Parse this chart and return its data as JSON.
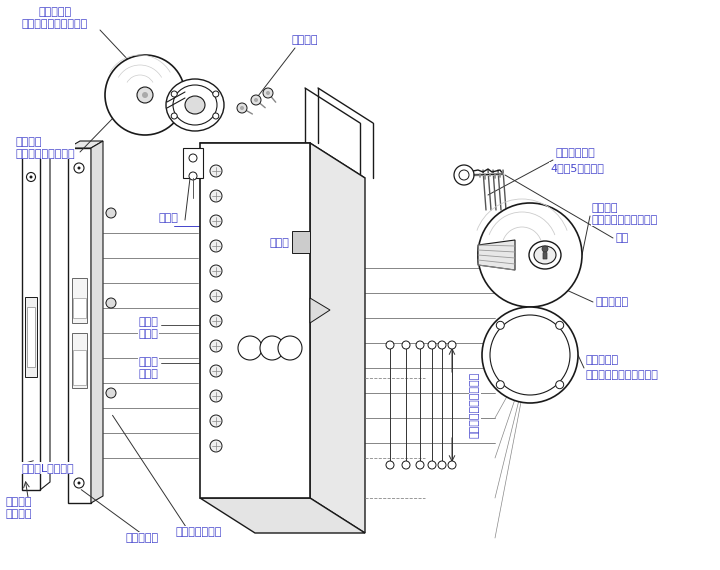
{
  "background_color": "#ffffff",
  "line_color": "#1a1a1a",
  "text_color": "#1a1a1a",
  "label_color": "#4444cc",
  "figsize": [
    7.2,
    5.7
  ],
  "dpi": 100,
  "labels": {
    "naibu_rose": "内部ローズ\n（インサイドローズ）",
    "hikitsuke_neji": "引付ネジ",
    "uchigawa_nobu": "内側ノブ\n（インサイドノブ）",
    "hikitsuke_ita": "引付板",
    "case_label": "ケース",
    "dead_bolt": "デット\nボルト",
    "latch_bolt": "ラッチ\nボルト",
    "dantsuki_front": "段付きLフロント",
    "front_neji": "フロント\n取付ネジ",
    "hira_front": "平フロント",
    "case_neji": "ケース取付ネジ",
    "pitch_label": "取付脚ピッチ\n4又は5調整可能",
    "sotogawa_nobu": "外側ノブ\n（アウトサイドノブ）",
    "key_label": "キー",
    "cylinder": "シリンダー",
    "sotogawa_rose": "外側ローズ\n（アウトサイドローズ）",
    "case_pitch": "ケース取付ビスピッチ"
  }
}
